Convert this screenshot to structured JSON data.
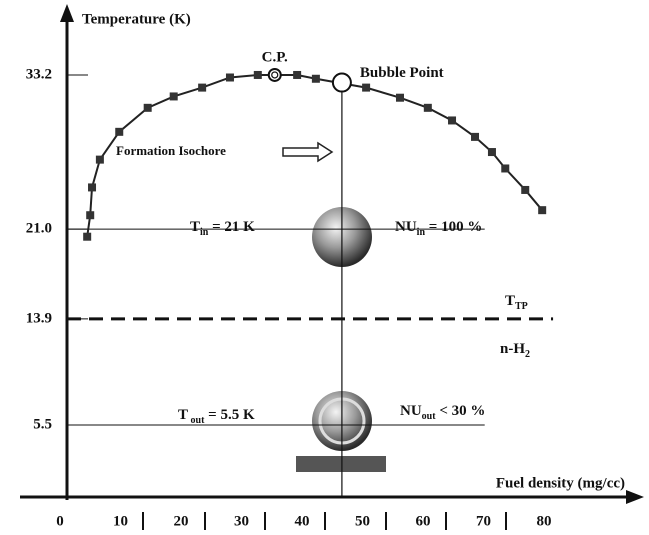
{
  "chart_data": {
    "type": "line",
    "y_label": "Temperature (K)",
    "x_label": "Fuel density (mg/cc)",
    "xlim": [
      -7,
      96
    ],
    "ylim": [
      -0.2,
      38.5
    ],
    "xticks": [
      0,
      10,
      20,
      30,
      40,
      50,
      60,
      70,
      80
    ],
    "yticks": [
      {
        "value": 5.5,
        "label": "5.5"
      },
      {
        "value": 13.9,
        "label": "13.9"
      },
      {
        "value": 21,
        "label": "21.0"
      },
      {
        "value": 33.2,
        "label": "33.2"
      }
    ],
    "series": [
      {
        "color": "#222",
        "x": [
          4.5,
          5.0,
          5.3,
          6.6,
          9.8,
          14.5,
          18.8,
          23.5,
          28.1,
          32.7,
          39.2,
          42.3,
          50.6,
          56.2,
          60.8,
          64.8,
          68.6,
          71.4,
          73.6,
          76.9,
          79.7
        ],
        "values": [
          20.4,
          22.1,
          24.3,
          26.5,
          28.7,
          30.6,
          31.5,
          32.2,
          33.0,
          33.2,
          33.2,
          32.9,
          32.2,
          31.4,
          30.6,
          29.6,
          28.3,
          27.1,
          25.8,
          24.1,
          22.5
        ]
      }
    ],
    "points": [
      {
        "name": "C.P.",
        "x": 35.5,
        "y": 33.2,
        "marker": "double-circle"
      },
      {
        "name": "Bubble Point",
        "x": 46.6,
        "y": 32.6,
        "marker": "circle"
      }
    ],
    "hlines": [
      {
        "y": 21,
        "x_end": 70.2,
        "style": "solid"
      },
      {
        "y": 13.9,
        "x_end": 81.5,
        "style": "dashed"
      },
      {
        "y": 5.5,
        "x_end": 70.2,
        "style": "solid"
      }
    ],
    "vline": 46.6,
    "annotations": [
      {
        "parts": [
          "Formation Isochore"
        ]
      },
      {
        "parts": [
          "T",
          "in",
          " = 21 K"
        ]
      },
      {
        "parts": [
          "NU",
          "in",
          " = 100 %"
        ]
      },
      {
        "parts": [
          "T",
          "TP"
        ]
      },
      {
        "parts": [
          "n-H",
          "2"
        ]
      },
      {
        "parts": [
          "T",
          " out",
          " = 5.5 K"
        ]
      },
      {
        "parts": [
          "NU",
          "out",
          " < 30 %"
        ]
      }
    ]
  }
}
